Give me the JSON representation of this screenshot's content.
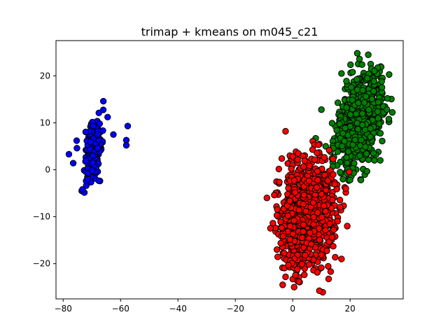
{
  "chart_data": {
    "type": "scatter",
    "title": "trimap + kmeans on m045_c21",
    "xlabel": "",
    "ylabel": "",
    "xlim": [
      -82.5,
      38.5
    ],
    "ylim": [
      -27.5,
      27.5
    ],
    "xticks": [
      -80,
      -60,
      -40,
      -20,
      0,
      20
    ],
    "yticks": [
      -20,
      -10,
      0,
      10,
      20
    ],
    "grid": false,
    "legend": "none",
    "series": [
      {
        "color": "#0000ff",
        "clusters": [
          {
            "center": [
              -69.5,
              4.0
            ],
            "sd_major": 3.6,
            "sd_minor": 1.5,
            "angle_deg": 75,
            "count": 230
          }
        ],
        "points": [
          [
            -78,
            3.3
          ],
          [
            -76.5,
            1.4
          ],
          [
            -75.3,
            6.2
          ],
          [
            -75.2,
            4.6
          ],
          [
            -72,
            -2.4
          ],
          [
            -71.5,
            -2.0
          ],
          [
            -66,
            14.6
          ],
          [
            -64.5,
            11.2
          ],
          [
            -62.5,
            7.5
          ],
          [
            -57.5,
            9.3
          ],
          [
            -58,
            6.3
          ],
          [
            -58,
            5.2
          ]
        ]
      },
      {
        "color": "#008000",
        "clusters": [
          {
            "center": [
              23.5,
              10.5
            ],
            "sd_major": 5.2,
            "sd_minor": 3.4,
            "angle_deg": 60,
            "count": 700
          }
        ],
        "points": [
          [
            22.5,
            24.8
          ],
          [
            30.5,
            2.0
          ],
          [
            16.5,
            -0.5
          ],
          [
            17.5,
            -2.0
          ],
          [
            8.0,
            6.7
          ],
          [
            10.0,
            12.8
          ],
          [
            33.0,
            15.2
          ],
          [
            33.5,
            10.8
          ],
          [
            31.0,
            18.8
          ],
          [
            17.0,
            20.5
          ],
          [
            11.5,
            5.0
          ]
        ]
      },
      {
        "color": "#ff0000",
        "clusters": [
          {
            "center": [
              5.0,
              -9.0
            ],
            "sd_major": 5.8,
            "sd_minor": 4.6,
            "angle_deg": 75,
            "count": 950
          }
        ],
        "points": [
          [
            -2.5,
            8.2
          ],
          [
            -1.0,
            3.0
          ],
          [
            0.0,
            2.8
          ],
          [
            -3.5,
            -24.5
          ],
          [
            -2.5,
            -22.8
          ],
          [
            0.5,
            -25.0
          ],
          [
            -9.0,
            -6.0
          ],
          [
            19.0,
            -12.0
          ],
          [
            17.0,
            -19.0
          ],
          [
            -1.5,
            -20.3
          ],
          [
            -5.5,
            -17.0
          ],
          [
            18.5,
            -4.0
          ]
        ]
      }
    ]
  }
}
